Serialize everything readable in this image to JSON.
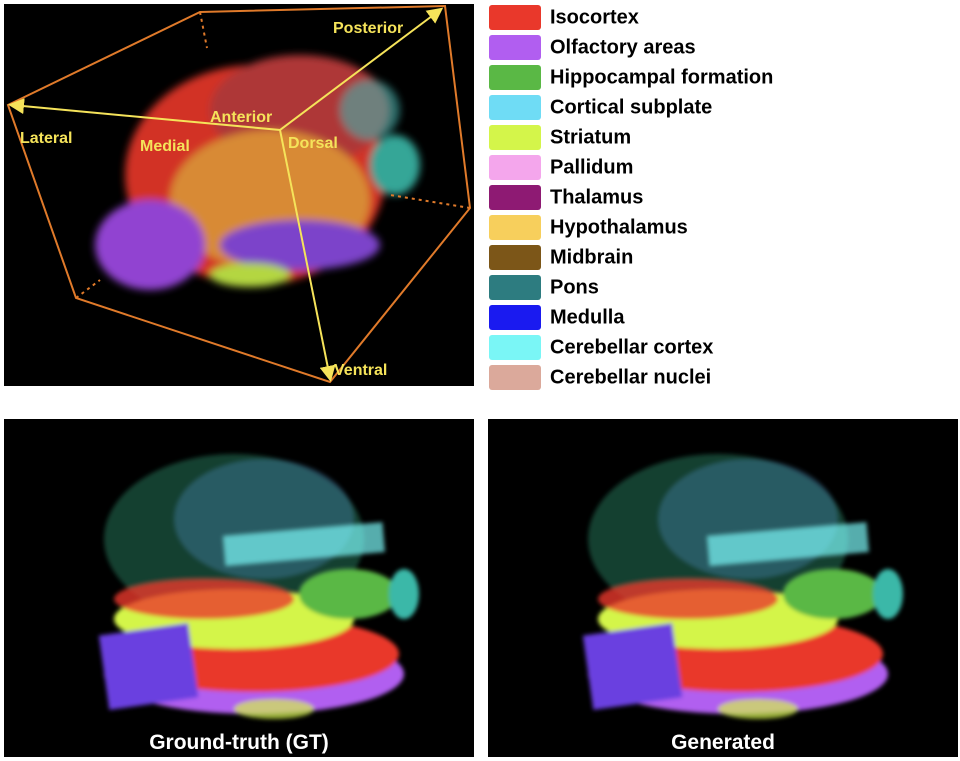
{
  "figure": {
    "orientation_labels": [
      "Posterior",
      "Lateral",
      "Anterior",
      "Medial",
      "Dorsal",
      "Ventral"
    ],
    "legend": [
      {
        "name": "Isocortex",
        "color": "#e9382b"
      },
      {
        "name": "Olfactory areas",
        "color": "#b15ef0"
      },
      {
        "name": "Hippocampal formation",
        "color": "#5ab845"
      },
      {
        "name": "Cortical subplate",
        "color": "#6fdcf5"
      },
      {
        "name": "Striatum",
        "color": "#d4f54a"
      },
      {
        "name": "Pallidum",
        "color": "#f4a6ec"
      },
      {
        "name": "Thalamus",
        "color": "#8e1a73"
      },
      {
        "name": "Hypothalamus",
        "color": "#f7cf5c"
      },
      {
        "name": "Midbrain",
        "color": "#7c5618"
      },
      {
        "name": "Pons",
        "color": "#2d7c80"
      },
      {
        "name": "Medulla",
        "color": "#1a1af0"
      },
      {
        "name": "Cerebellar cortex",
        "color": "#7af6f6"
      },
      {
        "name": "Cerebellar nuclei",
        "color": "#dba99b"
      }
    ],
    "panels": [
      {
        "caption": "Ground-truth (GT)"
      },
      {
        "caption": "Generated"
      }
    ]
  }
}
